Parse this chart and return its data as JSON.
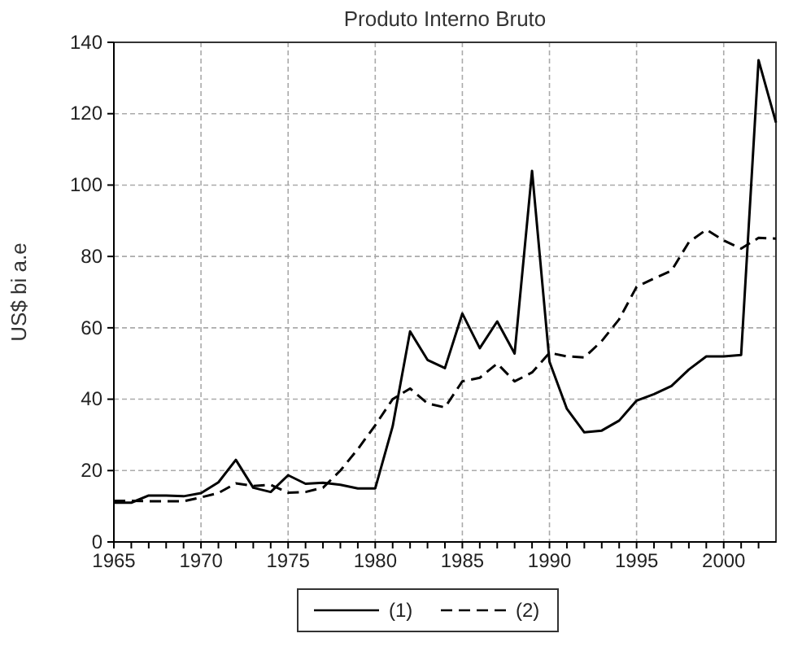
{
  "chart_data": {
    "type": "line",
    "title": "Produto Interno Bruto",
    "ylabel": "US$ bi a.e",
    "x": [
      1965,
      1966,
      1967,
      1968,
      1969,
      1970,
      1971,
      1972,
      1973,
      1974,
      1975,
      1976,
      1977,
      1978,
      1979,
      1980,
      1981,
      1982,
      1983,
      1984,
      1985,
      1986,
      1987,
      1988,
      1989,
      1990,
      1991,
      1992,
      1993,
      1994,
      1995,
      1996,
      1997,
      1998,
      1999,
      2000,
      2001,
      2002,
      2003
    ],
    "series": [
      {
        "name": "(1)",
        "color": "#000000",
        "line_style": "solid",
        "values": [
          11,
          11,
          13,
          13,
          12.8,
          13.7,
          16.7,
          23,
          15.2,
          14,
          18.7,
          16.3,
          16.6,
          16,
          15,
          15,
          32.4,
          59,
          51,
          48.7,
          64,
          54.3,
          61.8,
          52.8,
          104,
          50.5,
          37.3,
          30.7,
          31.2,
          34,
          39.6,
          41.4,
          43.7,
          48.3,
          52,
          52,
          52.4,
          135,
          117.5
        ]
      },
      {
        "name": "(2)",
        "color": "#000000",
        "line_style": "dashed",
        "values": [
          11.5,
          11.5,
          11.4,
          11.4,
          11.4,
          12.5,
          13.7,
          16.4,
          15.7,
          16,
          13.8,
          14,
          15.2,
          20,
          26,
          32.7,
          40,
          43,
          38.8,
          37.7,
          45,
          46,
          50,
          45,
          47.5,
          53,
          52,
          51.7,
          56.3,
          62.4,
          71.5,
          73.8,
          76,
          84,
          87.5,
          84.5,
          82.2,
          85.2,
          85
        ]
      }
    ],
    "xlim": [
      1965,
      2003
    ],
    "xticks": [
      1965,
      {
        "value": 1966,
        "label": null
      },
      {
        "value": 1967,
        "label": null
      },
      {
        "value": 1968,
        "label": null
      },
      {
        "value": 1969,
        "label": null
      },
      1970,
      {
        "value": 1971,
        "label": null
      },
      {
        "value": 1972,
        "label": null
      },
      {
        "value": 1973,
        "label": null
      },
      {
        "value": 1974,
        "label": null
      },
      1975,
      {
        "value": 1976,
        "label": null
      },
      {
        "value": 1977,
        "label": null
      },
      {
        "value": 1978,
        "label": null
      },
      {
        "value": 1979,
        "label": null
      },
      1980,
      {
        "value": 1981,
        "label": null
      },
      {
        "value": 1982,
        "label": null
      },
      {
        "value": 1983,
        "label": null
      },
      {
        "value": 1984,
        "label": null
      },
      1985,
      {
        "value": 1986,
        "label": null
      },
      {
        "value": 1987,
        "label": null
      },
      {
        "value": 1988,
        "label": null
      },
      {
        "value": 1989,
        "label": null
      },
      1990,
      {
        "value": 1991,
        "label": null
      },
      {
        "value": 1992,
        "label": null
      },
      {
        "value": 1993,
        "label": null
      },
      {
        "value": 1994,
        "label": null
      },
      1995,
      {
        "value": 1996,
        "label": null
      },
      {
        "value": 1997,
        "label": null
      },
      {
        "value": 1998,
        "label": null
      },
      {
        "value": 1999,
        "label": null
      },
      2000,
      {
        "value": 2001,
        "label": null
      },
      {
        "value": 2002,
        "label": null
      }
    ],
    "ylim": [
      0,
      140
    ],
    "yticks": [
      0,
      20,
      40,
      60,
      80,
      100,
      120,
      140
    ],
    "grid": true,
    "legend": "bottom"
  }
}
